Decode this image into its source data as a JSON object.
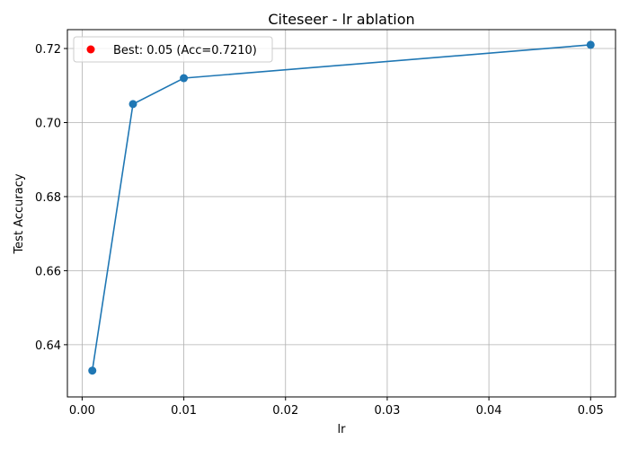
{
  "chart_data": {
    "type": "line",
    "title": "Citeseer - lr ablation",
    "xlabel": "lr",
    "ylabel": "Test Accuracy",
    "xlim": [
      -0.00145,
      0.05245
    ],
    "ylim": [
      0.6259,
      0.7251
    ],
    "xticks": [
      0.0,
      0.01,
      0.02,
      0.03,
      0.04,
      0.05
    ],
    "xtick_labels": [
      "0.00",
      "0.01",
      "0.02",
      "0.03",
      "0.04",
      "0.05"
    ],
    "yticks": [
      0.64,
      0.66,
      0.68,
      0.7,
      0.72
    ],
    "ytick_labels": [
      "0.64",
      "0.66",
      "0.68",
      "0.70",
      "0.72"
    ],
    "grid": true,
    "legend_position": "top-left",
    "series": [
      {
        "color": "#1f77b4",
        "x": [
          0.001,
          0.005,
          0.01,
          0.05
        ],
        "y": [
          0.633,
          0.705,
          0.712,
          0.721
        ]
      }
    ],
    "highlight": {
      "name": "Best: 0.05 (Acc=0.7210)",
      "color": "#ff0000",
      "x": 0.05,
      "y": 0.721
    }
  }
}
